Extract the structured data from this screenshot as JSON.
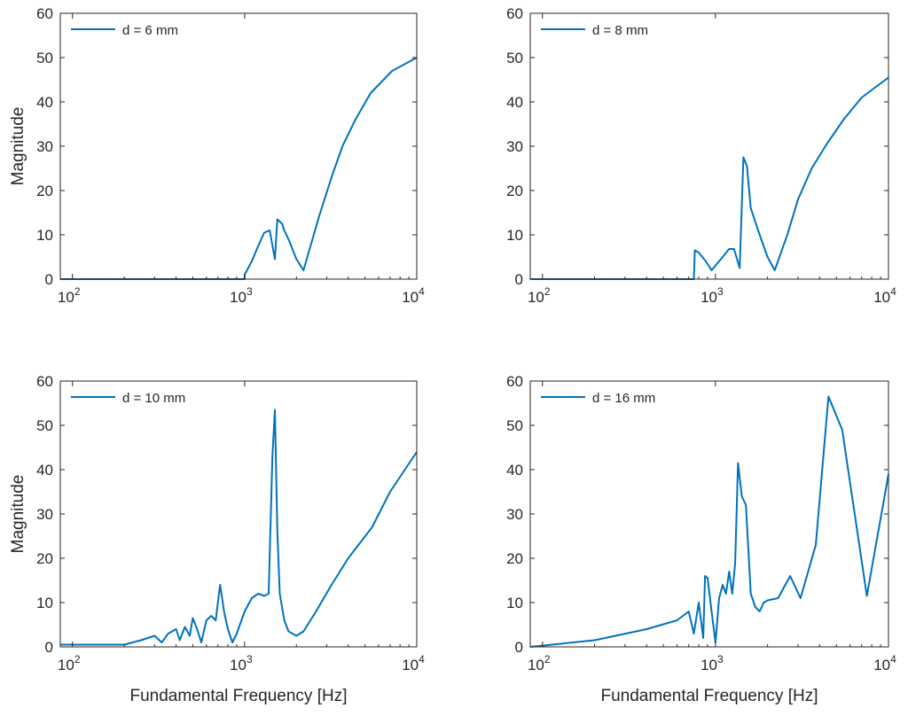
{
  "colors": {
    "series": "#0072BD",
    "axis": "#262626",
    "background": "#ffffff"
  },
  "shared": {
    "xlabel": "Fundamental Frequency [Hz]",
    "ylabel": "Magnitude",
    "xscale": "log",
    "xlim": [
      85,
      10000
    ],
    "ylim": [
      0,
      60
    ],
    "yticks": [
      0,
      10,
      20,
      30,
      40,
      50,
      60
    ],
    "xticks": [
      {
        "value": 100,
        "base": "10",
        "exp": "2"
      },
      {
        "value": 1000,
        "base": "10",
        "exp": "3"
      },
      {
        "value": 10000,
        "base": "10",
        "exp": "4"
      }
    ]
  },
  "chart_data": [
    {
      "type": "line",
      "legend": "d = 6 mm",
      "legend_position": "top-left",
      "xlabel": "",
      "ylabel": "Magnitude",
      "series": [
        {
          "name": "d = 6 mm",
          "x": [
            85,
            1000,
            1000,
            1100,
            1200,
            1300,
            1400,
            1500,
            1550,
            1650,
            1700,
            1800,
            2000,
            2200,
            2700,
            3200,
            3700,
            4400,
            5400,
            7200,
            10000
          ],
          "y": [
            0,
            0,
            1,
            4,
            7.5,
            10.5,
            11,
            4.5,
            13.5,
            12.5,
            11,
            9,
            4.5,
            2,
            14,
            23,
            30,
            36,
            42,
            47,
            50
          ]
        }
      ]
    },
    {
      "type": "line",
      "legend": "d = 8 mm",
      "legend_position": "top-left",
      "xlabel": "",
      "ylabel": "",
      "series": [
        {
          "name": "d = 8 mm",
          "x": [
            85,
            750,
            760,
            800,
            880,
            950,
            1100,
            1200,
            1280,
            1380,
            1450,
            1520,
            1600,
            1800,
            2000,
            2200,
            2600,
            3000,
            3600,
            4400,
            5500,
            7000,
            10000
          ],
          "y": [
            0,
            0,
            6.5,
            6,
            4,
            2,
            5,
            6.8,
            6.8,
            2.5,
            27.5,
            25.5,
            16,
            10,
            5,
            2,
            10,
            18,
            25,
            30.5,
            36,
            41,
            45.5
          ]
        }
      ]
    },
    {
      "type": "line",
      "legend": "d = 10 mm",
      "legend_position": "top-left",
      "xlabel": "Fundamental Frequency [Hz]",
      "ylabel": "Magnitude",
      "series": [
        {
          "name": "d = 10 mm",
          "x": [
            85,
            200,
            250,
            300,
            330,
            360,
            400,
            420,
            450,
            480,
            500,
            530,
            560,
            600,
            640,
            680,
            720,
            760,
            800,
            850,
            900,
            1000,
            1100,
            1200,
            1300,
            1380,
            1450,
            1500,
            1550,
            1600,
            1700,
            1800,
            2000,
            2200,
            2600,
            3200,
            4000,
            5500,
            7000,
            10000
          ],
          "y": [
            0.5,
            0.5,
            1.5,
            2.5,
            1,
            3,
            4,
            1.5,
            4.5,
            2.5,
            6.5,
            4,
            1,
            6,
            7,
            6,
            14,
            8,
            4,
            1,
            3,
            8,
            11,
            12,
            11.5,
            12,
            43,
            53.5,
            26,
            12,
            6,
            3.5,
            2.5,
            3.5,
            8,
            14,
            20,
            27,
            35,
            44
          ]
        }
      ]
    },
    {
      "type": "line",
      "legend": "d = 16 mm",
      "legend_position": "top-left",
      "xlabel": "Fundamental Frequency [Hz]",
      "ylabel": "",
      "series": [
        {
          "name": "d = 16 mm",
          "x": [
            85,
            200,
            400,
            600,
            700,
            750,
            800,
            850,
            870,
            900,
            950,
            1000,
            1050,
            1100,
            1150,
            1200,
            1250,
            1300,
            1350,
            1420,
            1500,
            1600,
            1700,
            1800,
            1900,
            2000,
            2300,
            2700,
            3100,
            3800,
            4500,
            5400,
            7500,
            10000
          ],
          "y": [
            0,
            1.5,
            4,
            6,
            8,
            3,
            10,
            2,
            16,
            15.5,
            8,
            1,
            11,
            14,
            12,
            17,
            12,
            19,
            41.5,
            34,
            32,
            12,
            9,
            8,
            10,
            10.5,
            11,
            16,
            11,
            23,
            56.5,
            49,
            11.5,
            39
          ]
        }
      ]
    }
  ]
}
